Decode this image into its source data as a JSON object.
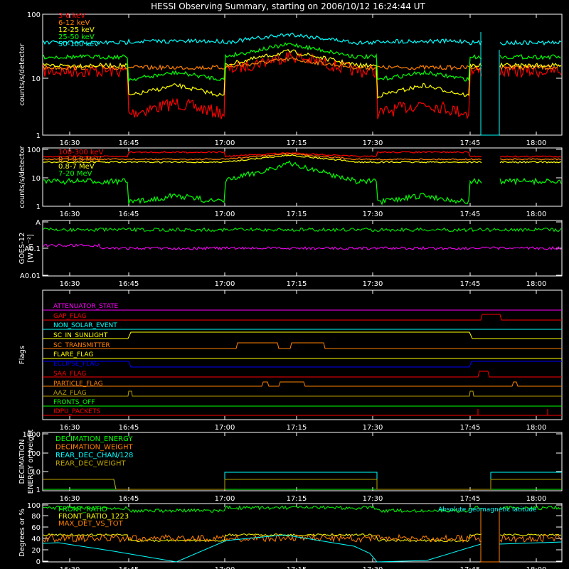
{
  "title": "HESSI Observing Summary, starting on 2006/10/12 16:24:44 UT",
  "time_ticks": [
    "16:30",
    "16:45",
    "17:00",
    "17:15",
    "17:30",
    "17:45",
    "18:00"
  ],
  "colors": {
    "red": "#ff0000",
    "orange": "#ff8000",
    "yellow": "#ffff00",
    "green": "#00ff00",
    "cyan": "#00ffff",
    "magenta": "#ff00ff",
    "blue": "#0000ff",
    "olive": "#b8a000",
    "white": "#ffffff"
  },
  "chart_data": [
    {
      "id": "low_energy",
      "type": "line",
      "ylabel": "counts/s/detector",
      "yscale": "log",
      "ytick_labels": [
        "1",
        "10",
        "100"
      ],
      "series": [
        {
          "name": "3-6 keV",
          "color": "red"
        },
        {
          "name": "6-12 keV",
          "color": "orange"
        },
        {
          "name": "12-25 keV",
          "color": "yellow"
        },
        {
          "name": "25-50 keV",
          "color": "green"
        },
        {
          "name": "50-100 keV",
          "color": "cyan"
        }
      ]
    },
    {
      "id": "high_energy",
      "type": "line",
      "ylabel": "counts/s/detector",
      "yscale": "log",
      "ytick_labels": [
        "1",
        "10",
        "100"
      ],
      "series": [
        {
          "name": "100-300 keV",
          "color": "red"
        },
        {
          "name": "0.3-0.8 MeV",
          "color": "orange"
        },
        {
          "name": "0.8-7 MeV",
          "color": "yellow"
        },
        {
          "name": "7-20 MeV",
          "color": "green"
        }
      ]
    },
    {
      "id": "goes",
      "type": "line",
      "ylabel": "GOES-12",
      "ylabel2": "[W m⁻²]",
      "yscale": "log",
      "ytick_labels": [
        "A",
        "A0.1",
        "A0.01"
      ],
      "series": [
        {
          "color": "green"
        },
        {
          "color": "magenta"
        }
      ]
    },
    {
      "id": "flags",
      "type": "line",
      "ylabel": "Flags",
      "flags": [
        {
          "name": "ATTENUATOR_STATE",
          "color": "magenta"
        },
        {
          "name": "GAP_FLAG",
          "color": "red"
        },
        {
          "name": "NON_SOLAR_EVENT",
          "color": "cyan"
        },
        {
          "name": "SC_IN_SUNLIGHT",
          "color": "yellow"
        },
        {
          "name": "SC_TRANSMITTER",
          "color": "orange"
        },
        {
          "name": "FLARE_FLAG",
          "color": "yellow"
        },
        {
          "name": "ECLIPSE_FLAG",
          "color": "blue"
        },
        {
          "name": "SAA_FLAG",
          "color": "red"
        },
        {
          "name": "PARTICLE_FLAG",
          "color": "orange"
        },
        {
          "name": "AAZ_FLAG",
          "color": "olive"
        },
        {
          "name": "FRONTS_OFF",
          "color": "green"
        },
        {
          "name": "IDPU_PACKETS",
          "color": "red"
        }
      ]
    },
    {
      "id": "decimation",
      "type": "line",
      "ylabel": "DECIMATION",
      "ylabel2": "ENERGY or weight",
      "yscale": "log",
      "ytick_labels": [
        "1",
        "10",
        "100",
        "1000"
      ],
      "series": [
        {
          "name": "DECIMATION_ENERGY",
          "color": "green"
        },
        {
          "name": "DECIMATION_WEIGHT",
          "color": "orange"
        },
        {
          "name": "REAR_DEC_CHAN/128",
          "color": "cyan"
        },
        {
          "name": "REAR_DEC_WEIGHT",
          "color": "olive"
        }
      ]
    },
    {
      "id": "ratio",
      "type": "line",
      "ylabel": "Degrees or %",
      "ytick_labels": [
        "0",
        "20",
        "40",
        "60",
        "80",
        "100"
      ],
      "annotation": "Absolute geomagnetic latitude",
      "series": [
        {
          "name": "FRONT_RATIO",
          "color": "green"
        },
        {
          "name": "FRONT_RATIO_1223",
          "color": "yellow"
        },
        {
          "name": "MAX_DET_VS_TOT",
          "color": "orange"
        },
        {
          "color": "cyan"
        }
      ]
    }
  ]
}
